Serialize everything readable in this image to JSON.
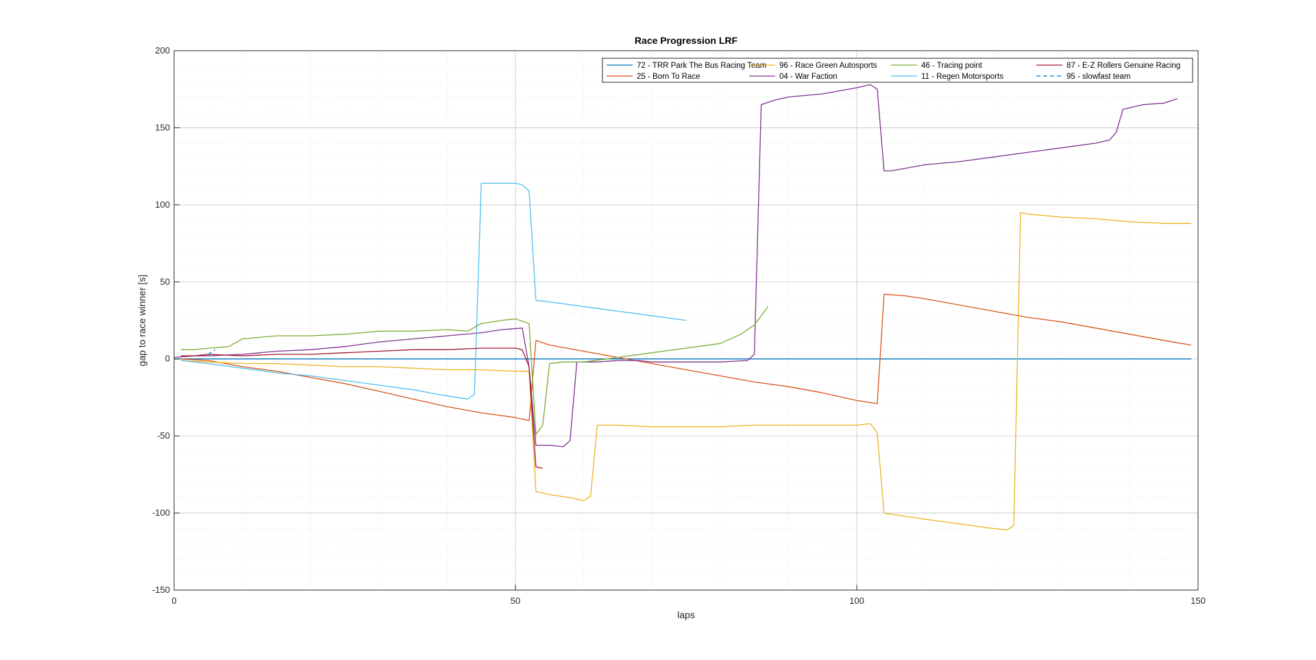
{
  "chart_data": {
    "type": "line",
    "title": "Race Progression LRF",
    "xlabel": "laps",
    "ylabel": "gap to race winner [s]",
    "xlim": [
      0,
      150
    ],
    "ylim": [
      -150,
      200
    ],
    "xticks": [
      0,
      50,
      100,
      150
    ],
    "yticks": [
      -150,
      -100,
      -50,
      0,
      50,
      100,
      150,
      200
    ],
    "grid": "on (major and minor)",
    "legend_position": "top-right",
    "legend_columns": 4,
    "series": [
      {
        "name": "72 - TRR Park The Bus Racing Team",
        "color": "#0072BD",
        "style": "solid",
        "x": [
          0,
          149
        ],
        "y": [
          0,
          0
        ]
      },
      {
        "name": "25 - Born To Race",
        "color": "#D95319",
        "style": "solid",
        "x": [
          1,
          5,
          10,
          15,
          20,
          25,
          30,
          35,
          40,
          45,
          50,
          52,
          53,
          55,
          60,
          65,
          70,
          75,
          80,
          85,
          90,
          95,
          100,
          103,
          104,
          107,
          110,
          115,
          120,
          125,
          130,
          135,
          140,
          145,
          149
        ],
        "y": [
          0,
          -1,
          -5,
          -8,
          -12,
          -16,
          -21,
          -26,
          -31,
          -35,
          -38,
          -40,
          12,
          9,
          5,
          1,
          -3,
          -7,
          -11,
          -15,
          -18,
          -22,
          -27,
          -29,
          42,
          41,
          39,
          35,
          31,
          27,
          24,
          20,
          16,
          12,
          9
        ]
      },
      {
        "name": "96 - Race Green Autosports",
        "color": "#EDB120",
        "style": "solid",
        "x": [
          1,
          5,
          10,
          15,
          20,
          25,
          30,
          35,
          40,
          45,
          50,
          52,
          53,
          55,
          58,
          60,
          61,
          62,
          65,
          70,
          80,
          85,
          90,
          95,
          100,
          102,
          103,
          104,
          110,
          115,
          120,
          122,
          123,
          124,
          125,
          130,
          135,
          140,
          145,
          149
        ],
        "y": [
          -1,
          -2,
          -3,
          -3,
          -4,
          -5,
          -5,
          -6,
          -7,
          -7,
          -8,
          -8,
          -86,
          -88,
          -90,
          -92,
          -89,
          -43,
          -43,
          -44,
          -44,
          -43,
          -43,
          -43,
          -43,
          -42,
          -48,
          -100,
          -104,
          -107,
          -110,
          -111,
          -108,
          95,
          94,
          92,
          91,
          89,
          88,
          88
        ]
      },
      {
        "name": "04 - War Faction",
        "color": "#7E2F8E",
        "style": "solid",
        "x": [
          0,
          3,
          5,
          10,
          15,
          20,
          25,
          30,
          35,
          40,
          45,
          48,
          51,
          52,
          53,
          55,
          57,
          58,
          59,
          62,
          65,
          68,
          70,
          75,
          80,
          84,
          85,
          86,
          88,
          90,
          95,
          100,
          102,
          103,
          104,
          105,
          110,
          115,
          120,
          125,
          130,
          135,
          137,
          138,
          139,
          140,
          142,
          145,
          147
        ],
        "y": [
          1,
          2,
          2,
          3,
          5,
          6,
          8,
          11,
          13,
          15,
          17,
          19,
          20,
          -5,
          -56,
          -56,
          -57,
          -53,
          -2,
          -2,
          -1,
          -1,
          -2,
          -2,
          -2,
          -1,
          3,
          165,
          168,
          170,
          172,
          176,
          178,
          175,
          122,
          122,
          126,
          128,
          131,
          134,
          137,
          140,
          142,
          147,
          162,
          163,
          165,
          166,
          169
        ]
      },
      {
        "name": "46 - Tracing point",
        "color": "#77AC30",
        "style": "solid",
        "x": [
          1,
          3,
          5,
          8,
          10,
          15,
          20,
          25,
          30,
          35,
          40,
          43,
          45,
          48,
          50,
          52,
          53,
          54,
          55,
          57,
          60,
          65,
          70,
          75,
          80,
          83,
          85,
          86,
          87
        ],
        "y": [
          6,
          6,
          7,
          8,
          13,
          15,
          15,
          16,
          18,
          18,
          19,
          18,
          23,
          25,
          26,
          23,
          -49,
          -43,
          -3,
          -2,
          -2,
          1,
          4,
          7,
          10,
          16,
          22,
          28,
          34
        ]
      },
      {
        "name": "11 - Regen Motorsports",
        "color": "#4DBEEE",
        "style": "solid",
        "x": [
          1,
          5,
          10,
          15,
          20,
          25,
          30,
          35,
          40,
          43,
          44,
          45,
          47,
          50,
          51,
          52,
          53,
          55,
          60,
          65,
          70,
          75
        ],
        "y": [
          -1,
          -3,
          -6,
          -9,
          -11,
          -14,
          -17,
          -20,
          -24,
          -26,
          -23,
          114,
          114,
          114,
          113,
          109,
          38,
          37,
          34,
          31,
          28,
          25
        ]
      },
      {
        "name": "87 - E-Z Rollers Genuine Racing",
        "color": "#A2142F",
        "style": "solid",
        "x": [
          1,
          3,
          5,
          10,
          15,
          20,
          25,
          30,
          35,
          40,
          45,
          50,
          51,
          52,
          53,
          54
        ],
        "y": [
          2,
          2,
          3,
          2,
          3,
          3,
          4,
          5,
          6,
          6,
          7,
          7,
          6,
          -5,
          -70,
          -71
        ]
      },
      {
        "name": "95 - slowfast team",
        "color": "#0072BD",
        "style": "dashed",
        "x": [
          5,
          6
        ],
        "y": [
          3,
          6
        ]
      }
    ]
  }
}
